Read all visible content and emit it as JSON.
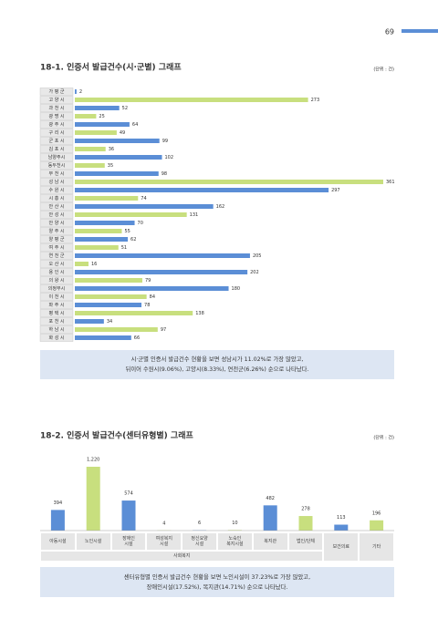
{
  "page_number": "69",
  "chart_data": [
    {
      "type": "hbar",
      "title": "18-1. 인증서 발급건수(시·군별) 그래프",
      "unit_label": "(단위 : 건)",
      "categories": [
        "가 평 군",
        "고 양 시",
        "과 천 시",
        "광 명 시",
        "광 주 시",
        "구 리 시",
        "군 포 시",
        "김 포 시",
        "남양주시",
        "동두천시",
        "부 천 시",
        "성 남 시",
        "수 원 시",
        "시 흥 시",
        "안 산 시",
        "안 성 시",
        "안 양 시",
        "양 주 시",
        "양 평 군",
        "여 주 시",
        "연 천 군",
        "오 산 시",
        "용 인 시",
        "의 왕 시",
        "의정부시",
        "이 천 시",
        "파 주 시",
        "평 택 시",
        "포 천 시",
        "하 남 시",
        "화 성 시"
      ],
      "values": [
        2,
        273,
        52,
        25,
        64,
        49,
        99,
        36,
        102,
        35,
        98,
        361,
        297,
        74,
        162,
        131,
        70,
        55,
        62,
        51,
        205,
        16,
        202,
        79,
        180,
        84,
        78,
        138,
        34,
        97,
        66
      ],
      "colors": [
        "#5b8ed6",
        "#c8df7e"
      ],
      "summary": [
        "시·군별 인증서 발급건수 현황을 보면 성남시가 11.02%로 가장 많았고,",
        "뒤이어 수원시(9.06%), 고양시(8.33%), 연천군(6.26%) 순으로 나타났다."
      ]
    },
    {
      "type": "bar",
      "title": "18-2. 인증서 발급건수(센터유형별) 그래프",
      "unit_label": "(단위 : 건)",
      "categories": [
        "아동시설",
        "노인시설",
        "장애인\n시설",
        "여성복지\n시설",
        "정신요양\n시설",
        "노숙인\n복지시설",
        "복지관",
        "법인/단체",
        "보건의료",
        "기타"
      ],
      "values": [
        394,
        1220,
        574,
        4,
        6,
        10,
        482,
        278,
        113,
        196
      ],
      "value_labels": [
        "394",
        "1,220",
        "574",
        "4",
        "6",
        "10",
        "482",
        "278",
        "113",
        "196"
      ],
      "colors": [
        "#5b8ed6",
        "#c8df7e"
      ],
      "category_group": {
        "name": "사회복지",
        "size": 8
      },
      "summary": [
        "센터유형별 인증서 발급건수 현황을 보면 노인시설이 37.23%로 가장 많았고,",
        "장애인시설(17.52%), 복지관(14.71%) 순으로 나타났다."
      ]
    }
  ]
}
